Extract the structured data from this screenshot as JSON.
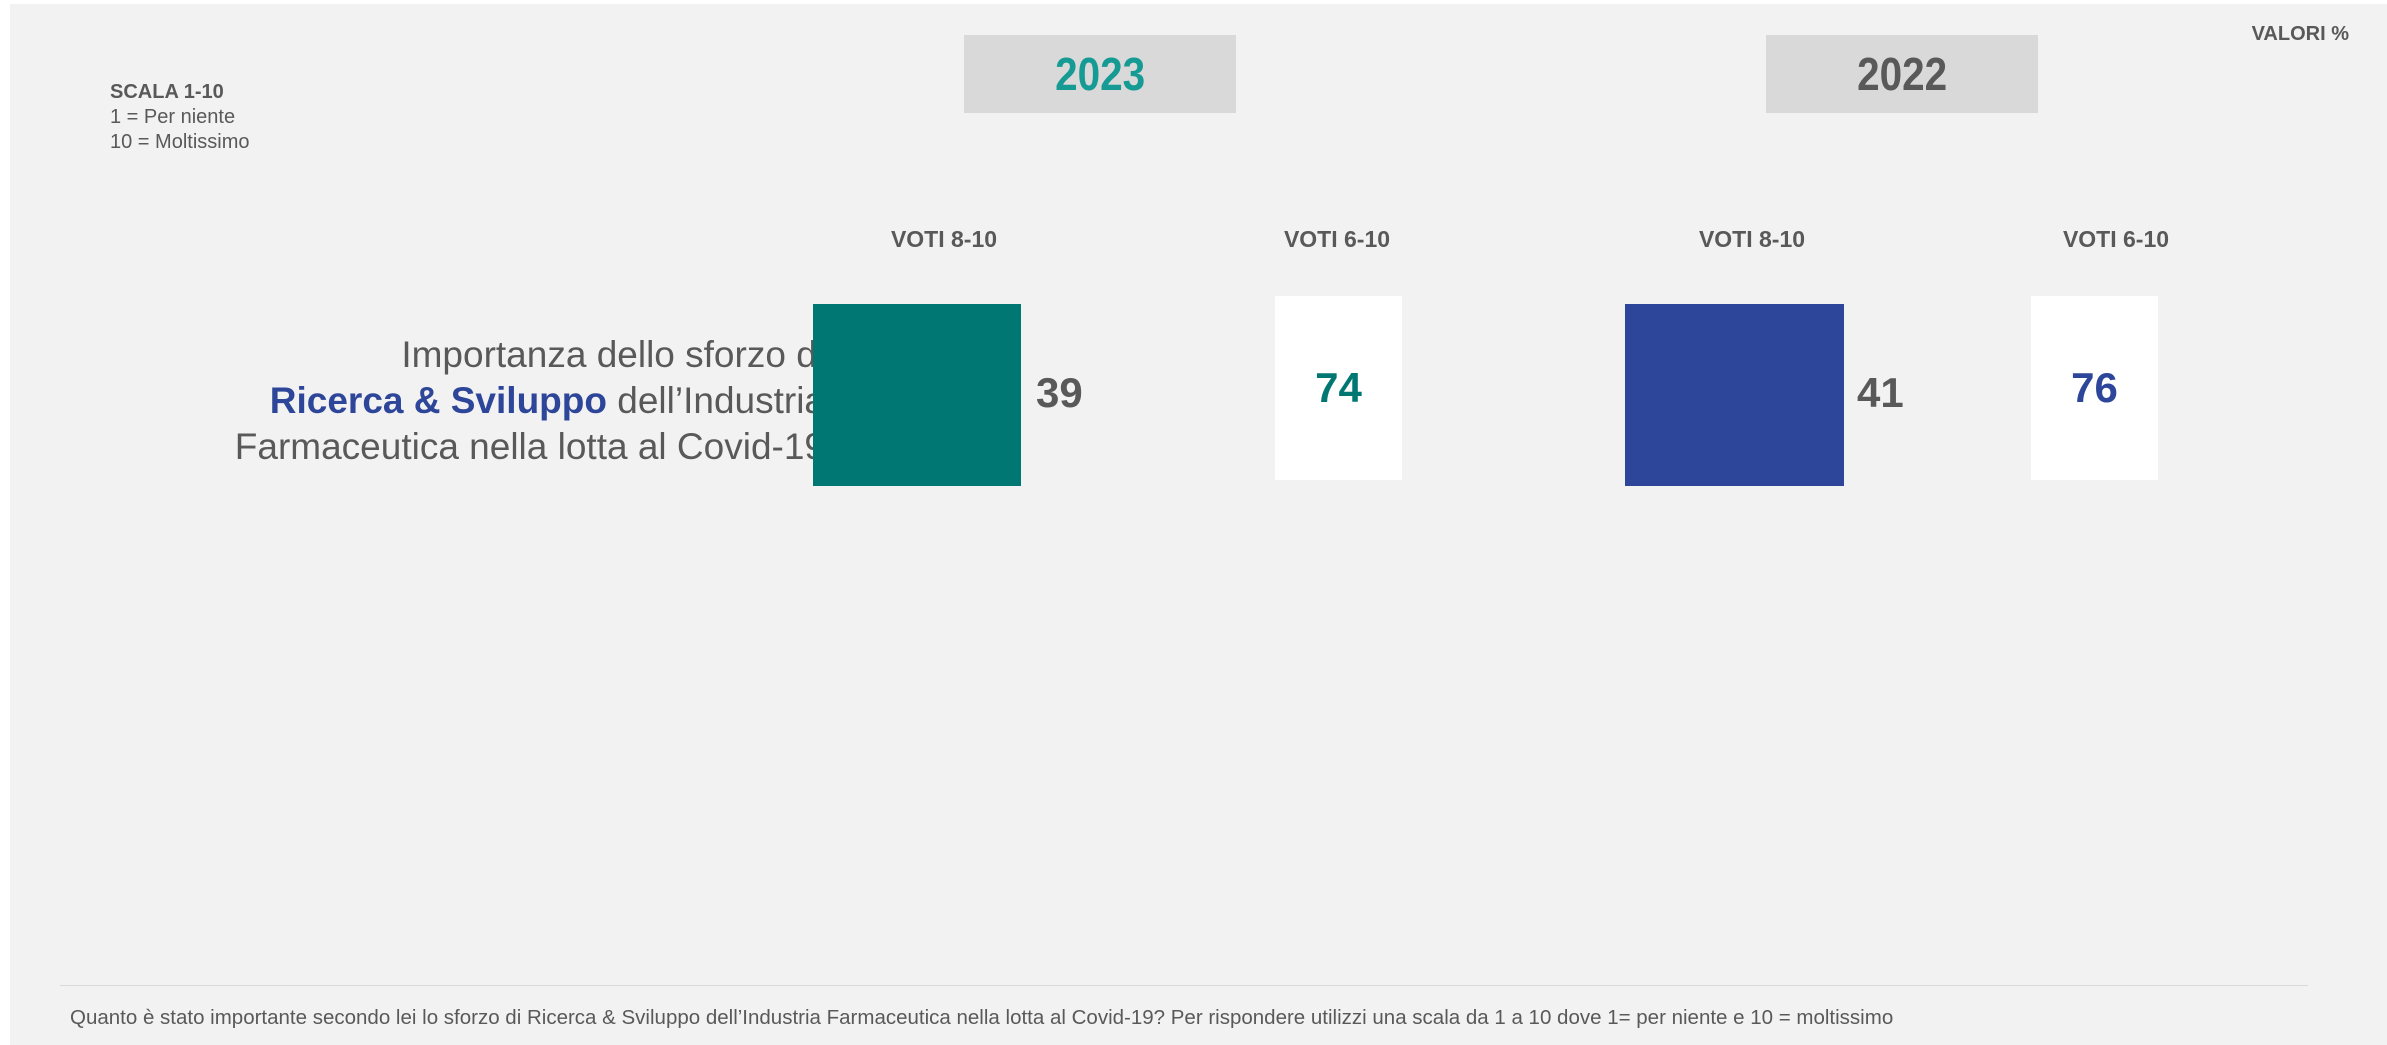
{
  "header": {
    "valori": "VALORI %",
    "scala_title": "SCALA 1-10",
    "scala_low": "1 = Per niente",
    "scala_high": "10 = Moltissimo"
  },
  "years": [
    {
      "label": "2023",
      "color": "#159b94"
    },
    {
      "label": "2022",
      "color": "#595959"
    }
  ],
  "column_headers": [
    "VOTI 8-10",
    "VOTI 6-10",
    "VOTI 8-10",
    "VOTI 6-10"
  ],
  "statement": {
    "line1": "Importanza dello sforzo di",
    "line2_highlight": "Ricerca & Sviluppo",
    "line2_rest": " dell’Industria",
    "line3": "Farmaceutica nella lotta al Covid-19"
  },
  "chart_data": {
    "type": "bar",
    "categories": [
      "Importanza dello sforzo di Ricerca & Sviluppo dell’Industria Farmaceutica nella lotta al Covid-19"
    ],
    "series": [
      {
        "name": "2023",
        "measure": "VOTI 8-10",
        "values": [
          39
        ],
        "color": "#007773"
      },
      {
        "name": "2023",
        "measure": "VOTI 6-10",
        "values": [
          74
        ],
        "color": "#007773"
      },
      {
        "name": "2022",
        "measure": "VOTI 8-10",
        "values": [
          41
        ],
        "color": "#2e4699"
      },
      {
        "name": "2022",
        "measure": "VOTI 6-10",
        "values": [
          76
        ],
        "color": "#2e4699"
      }
    ],
    "unit": "VALORI %"
  },
  "values_display": {
    "y2023_top": "39",
    "y2023_total": "74",
    "y2022_top": "41",
    "y2022_total": "76"
  },
  "footnote": "Quanto è stato importante secondo lei lo sforzo di Ricerca & Sviluppo dell’Industria Farmaceutica nella lotta al Covid-19? Per rispondere utilizzi una scala da 1 a 10 dove 1= per niente e 10 = moltissimo"
}
